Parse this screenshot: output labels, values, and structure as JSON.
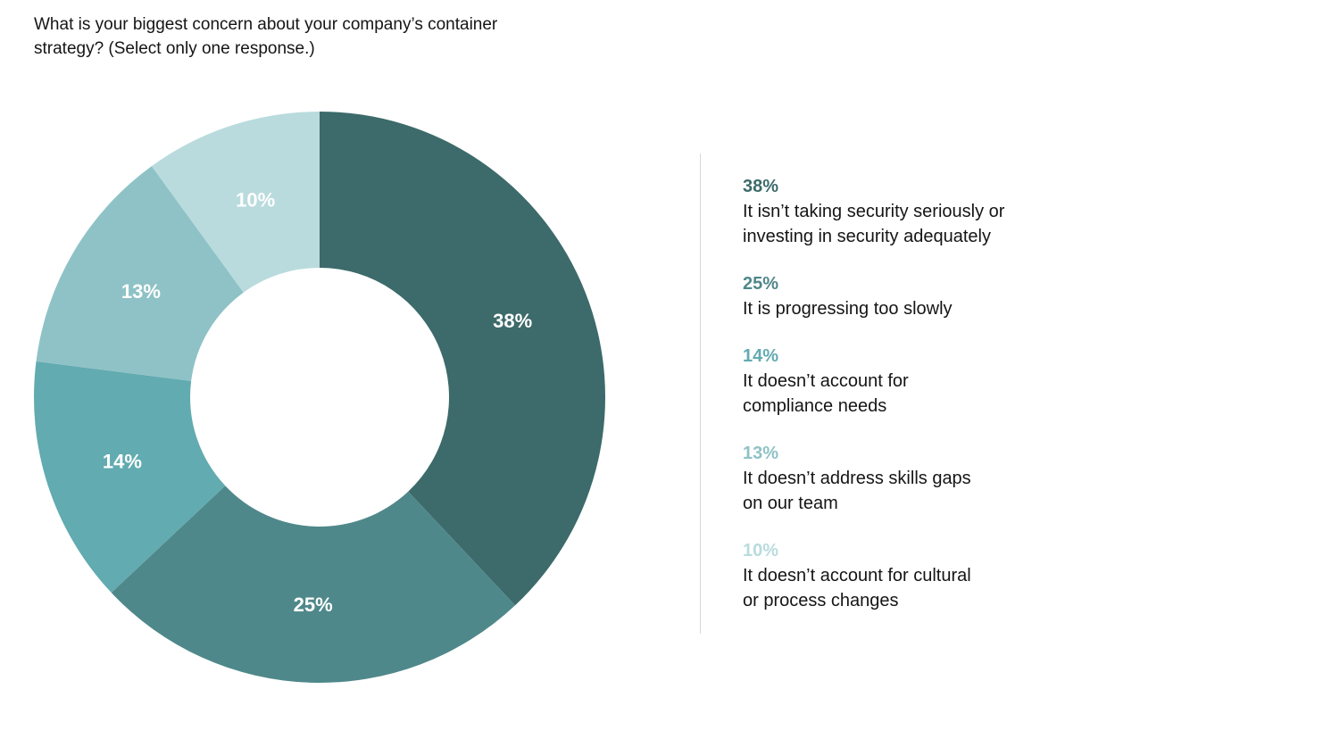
{
  "chart_data": {
    "type": "pie",
    "title": "What is your biggest concern about your company’s container strategy? (Select only one response.)",
    "series": [
      {
        "label": "It isn’t taking security seriously or\ninvesting in security adequately",
        "value": 38,
        "display": "38%",
        "color": "#3d6a6a"
      },
      {
        "label": "It is progressing too slowly",
        "value": 25,
        "display": "25%",
        "color": "#4f888a"
      },
      {
        "label": "It doesn’t account for\ncompliance needs",
        "value": 14,
        "display": "14%",
        "color": "#62abb0"
      },
      {
        "label": "It doesn’t address skills gaps\non our team",
        "value": 13,
        "display": "13%",
        "color": "#8ec2c6"
      },
      {
        "label": "It doesn’t account for cultural\nor process changes",
        "value": 10,
        "display": "10%",
        "color": "#b9dbdd"
      }
    ],
    "legend_placement": "right"
  }
}
